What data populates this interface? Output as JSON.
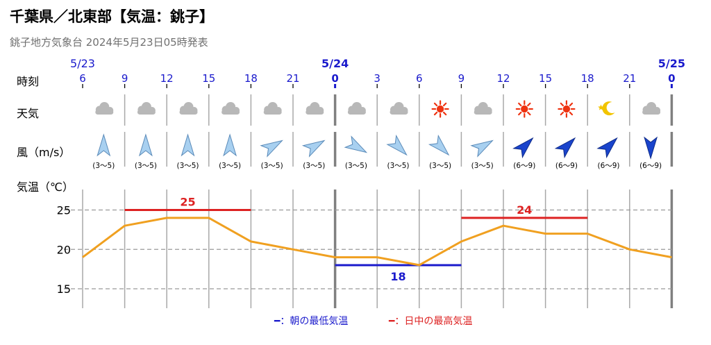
{
  "header": {
    "title": "千葉県／北東部【気温：銚子】",
    "subtitle": "銚子地方気象台 2024年5月23日05時発表"
  },
  "row_labels": {
    "time": "時刻",
    "weather": "天気",
    "wind": "風（m/s）",
    "temperature": "気温（℃）"
  },
  "date_labels": [
    {
      "col": 0,
      "text": "5/23"
    },
    {
      "col": 6,
      "text": "5/24"
    },
    {
      "col": 14,
      "text": "5/25"
    }
  ],
  "hours": [
    "6",
    "9",
    "12",
    "15",
    "18",
    "21",
    "0",
    "3",
    "6",
    "9",
    "12",
    "15",
    "18",
    "21",
    "0"
  ],
  "weather_icons": [
    "cloud-icon",
    "cloud-icon",
    "cloud-icon",
    "cloud-icon",
    "cloud-icon",
    "cloud-icon",
    "cloud-icon",
    "cloud-icon",
    "sun-icon",
    "cloud-icon",
    "sun-icon",
    "sun-icon",
    "moon-star-icon",
    "cloud-icon"
  ],
  "wind": {
    "directions_deg": [
      0,
      0,
      0,
      0,
      60,
      60,
      120,
      135,
      135,
      60,
      45,
      45,
      45,
      180
    ],
    "ranges": [
      "(3～5)",
      "(3～5)",
      "(3～5)",
      "(3～5)",
      "(3～5)",
      "(3～5)",
      "(3～5)",
      "(3～5)",
      "(3～5)",
      "(3～5)",
      "(6～9)",
      "(6～9)",
      "(6～9)",
      "(6～9)"
    ],
    "strength": [
      "light",
      "light",
      "light",
      "light",
      "light",
      "light",
      "light",
      "light",
      "light",
      "light",
      "strong",
      "strong",
      "strong",
      "strong"
    ]
  },
  "colors": {
    "temperature_line": "#f0a020",
    "max_temp": "#dd2222",
    "min_temp": "#1a1acc",
    "date_label": "#1a1acc",
    "sun": "#ee3311",
    "moon": "#f2c400",
    "cloud": "#b8b8b8",
    "wind_light": "#a8d0f0",
    "wind_strong": "#1a44cc"
  },
  "chart_data": {
    "type": "line",
    "x": [
      "6",
      "9",
      "12",
      "15",
      "18",
      "21",
      "0",
      "3",
      "6",
      "9",
      "12",
      "15",
      "18",
      "21",
      "0"
    ],
    "series": [
      {
        "values": [
          19,
          23,
          24,
          24,
          21,
          20,
          19,
          19,
          18,
          21,
          23,
          22,
          22,
          20,
          19
        ]
      }
    ],
    "max_temps": [
      {
        "from_col": 1,
        "to_col": 4,
        "value": 25,
        "label": "25"
      },
      {
        "from_col": 9,
        "to_col": 12,
        "value": 24,
        "label": "24"
      }
    ],
    "min_temps": [
      {
        "from_col": 6,
        "to_col": 9,
        "value": 18,
        "label": "18"
      }
    ],
    "y_ticks": [
      15,
      20,
      25
    ],
    "ylim": [
      12.5,
      27.5
    ],
    "grid": true
  },
  "legend": {
    "min_label": "━：朝の最低気温",
    "max_label": "━：日中の最高気温"
  }
}
